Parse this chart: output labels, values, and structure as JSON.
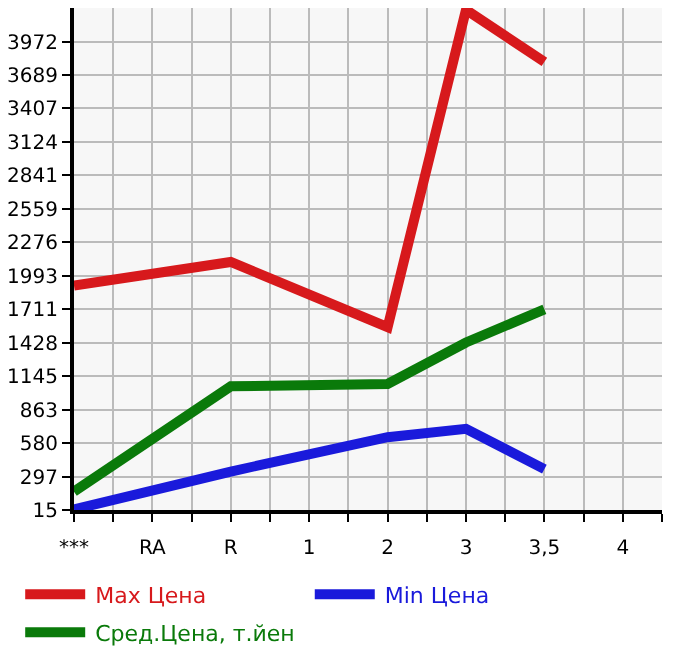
{
  "chart_data": {
    "type": "line",
    "categories": [
      "***",
      "RA",
      "R",
      "1",
      "2",
      "3",
      "3,5",
      "4"
    ],
    "series": [
      {
        "name": "Max Цена",
        "color": "#d7191c",
        "values": [
          1910,
          null,
          2110,
          null,
          1560,
          4240,
          3800,
          null
        ]
      },
      {
        "name": "Min Цена",
        "color": "#1a1adb",
        "values": [
          20,
          null,
          340,
          null,
          630,
          700,
          360,
          null
        ]
      },
      {
        "name": "Сред.Цена, т.йен",
        "color": "#0a7a0a",
        "values": [
          170,
          null,
          1060,
          null,
          1080,
          1430,
          1710,
          null
        ]
      }
    ],
    "ylim": [
      15,
      4255
    ],
    "yticks": [
      15,
      297,
      580,
      863,
      1145,
      1428,
      1711,
      1993,
      2276,
      2559,
      2841,
      3124,
      3407,
      3689,
      3972
    ],
    "grid": true,
    "legend": "bottom",
    "marker": "none",
    "line_style": "solid"
  }
}
